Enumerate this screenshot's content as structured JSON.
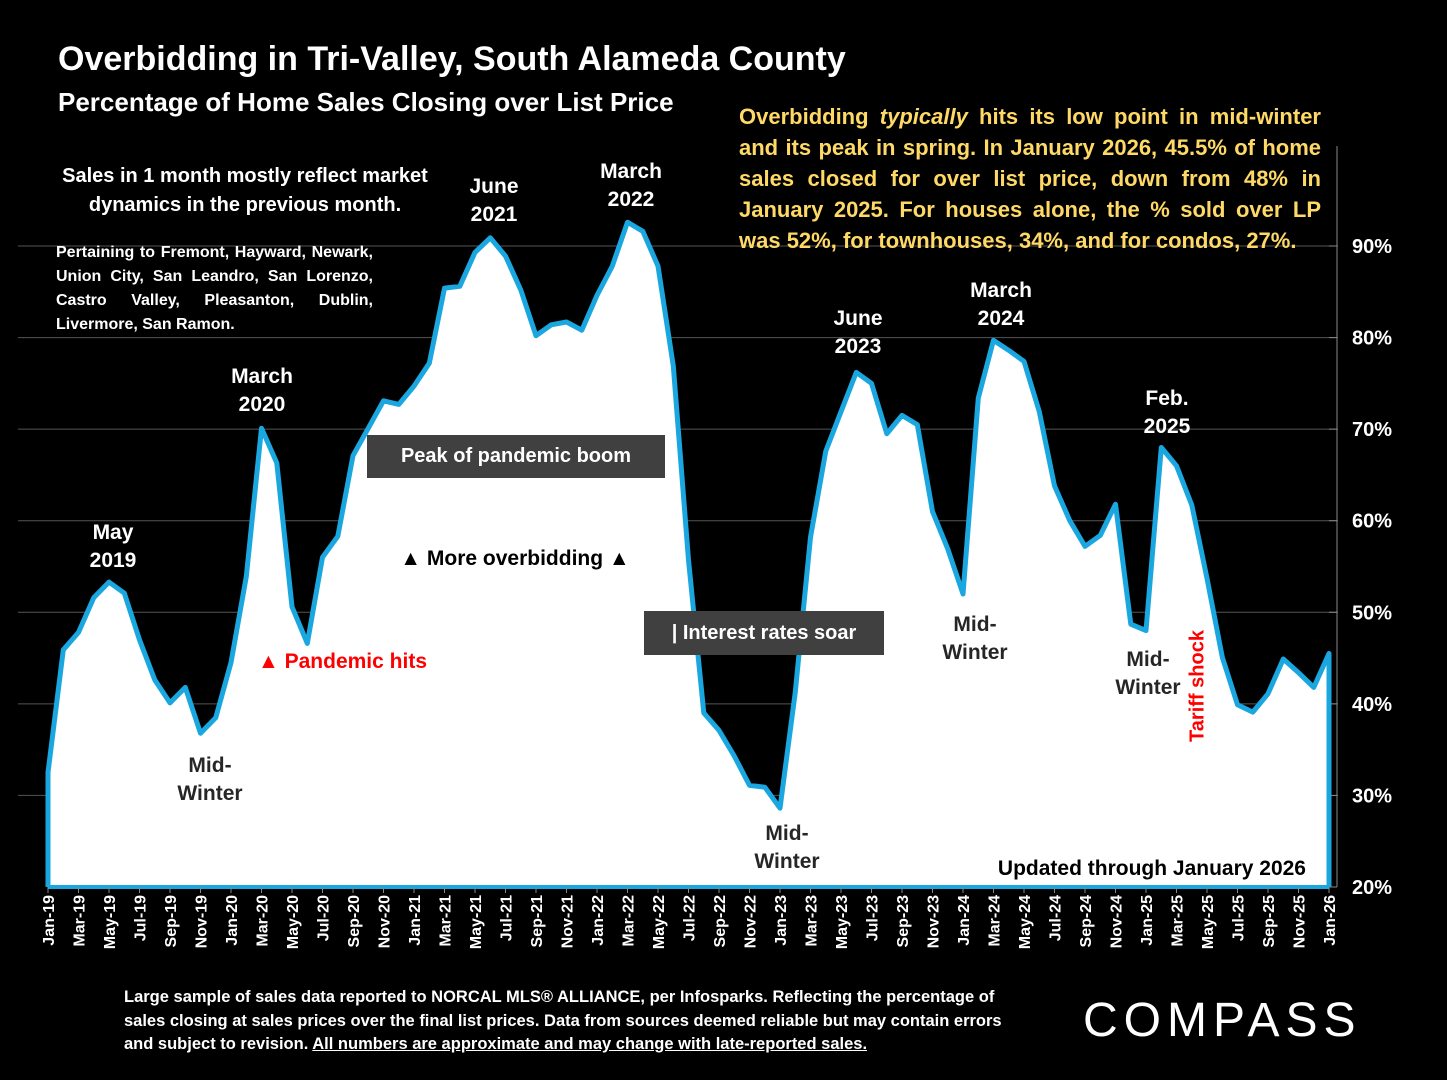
{
  "title": "Overbidding in Tri-Valley, South Alameda County",
  "subtitle": "Percentage of Home Sales Closing over List Price",
  "note_lag": "Sales in 1 month mostly reflect market dynamics in the previous month.",
  "note_cities": "Pertaining to Fremont, Hayward, Newark, Union City, San Leandro, San Lorenzo, Castro Valley, Pleasanton, Dublin, Livermore, San Ramon.",
  "summary": {
    "before": "Overbidding ",
    "emph": "typically",
    "after": " hits its low point in mid-winter and its peak in spring. In January 2026, 45.5% of home sales closed for over list price, down from 48% in January 2025. For houses alone, the % sold over LP was 52%, for townhouses, 34%, and for condos, 27%."
  },
  "footer": {
    "text": "Large sample of sales data reported to NORCAL MLS® ALLIANCE, per Infosparks. Reflecting the percentage of sales closing at sales prices over the final list prices. Data from sources deemed reliable but may contain errors and subject to revision. ",
    "underlined": "All numbers are approximate and may change with late-reported sales."
  },
  "logo": "COMPASS",
  "colors": {
    "line": "#1AA7E0",
    "fill": "#FFFFFF",
    "summary": "#FFD966",
    "red": "#FF0000",
    "box": "#404040"
  },
  "chart_data": {
    "type": "area",
    "title": "Percentage of Home Sales Closing over List Price",
    "xlabel": "",
    "ylabel": "",
    "x_start": "Jan-19",
    "x_end": "Jan-26",
    "interval": "monthly",
    "ylim": [
      20,
      90
    ],
    "y_ticks": [
      "20%",
      "30%",
      "40%",
      "50%",
      "60%",
      "70%",
      "80%",
      "90%"
    ],
    "y_tick_values": [
      20,
      30,
      40,
      50,
      60,
      70,
      80,
      90
    ],
    "grid": true,
    "x_tick_labels": [
      "Jan-19",
      "Mar-19",
      "May-19",
      "Jul-19",
      "Sep-19",
      "Nov-19",
      "Jan-20",
      "Mar-20",
      "May-20",
      "Jul-20",
      "Sep-20",
      "Nov-20",
      "Jan-21",
      "Mar-21",
      "May-21",
      "Jul-21",
      "Sep-21",
      "Nov-21",
      "Jan-22",
      "Mar-22",
      "May-22",
      "Jul-22",
      "Sep-22",
      "Nov-22",
      "Jan-23",
      "Mar-23",
      "May-23",
      "Jul-23",
      "Sep-23",
      "Nov-23",
      "Jan-24",
      "Mar-24",
      "May-24",
      "Jul-24",
      "Sep-24",
      "Nov-24",
      "Jan-25",
      "Mar-25",
      "May-25",
      "Jul-25",
      "Sep-25",
      "Nov-25",
      "Jan-26"
    ],
    "values": [
      32.5,
      45.9,
      47.8,
      51.6,
      53.3,
      52.1,
      47.0,
      42.6,
      40.1,
      41.8,
      36.8,
      38.5,
      44.5,
      53.9,
      70.1,
      66.3,
      50.6,
      46.6,
      56.0,
      58.3,
      67.1,
      70.1,
      73.1,
      72.7,
      74.7,
      77.2,
      85.4,
      85.6,
      89.3,
      90.9,
      88.9,
      85.2,
      80.2,
      81.4,
      81.7,
      80.8,
      84.6,
      87.8,
      92.6,
      91.6,
      87.8,
      76.9,
      55.7,
      39.0,
      37.1,
      34.3,
      31.1,
      30.9,
      28.6,
      41.3,
      58.2,
      67.6,
      71.9,
      76.2,
      75.0,
      69.5,
      71.5,
      70.5,
      61.0,
      56.9,
      52.0,
      73.4,
      79.7,
      78.6,
      77.4,
      71.9,
      63.8,
      60.0,
      57.2,
      58.4,
      61.8,
      48.7,
      48.0,
      68.0,
      66.0,
      61.7,
      53.7,
      45.1,
      39.9,
      39.1,
      41.1,
      44.9,
      43.4,
      41.8,
      45.5
    ],
    "annotations": {
      "may2019": "May\n2019",
      "mar2020": "March\n2020",
      "jun2021": "June\n2021",
      "mar2022": "March\n2022",
      "jun2023": "June\n2023",
      "mar2024": "March\n2024",
      "feb2025": "Feb.\n2025",
      "midwinter": "Mid-\nWinter",
      "pandemic": "▲ Pandemic hits",
      "more_overbidding": "▲ More overbidding ▲",
      "peak_box": "Peak of pandemic boom",
      "rates_box": "| Interest rates soar",
      "tariff": "Tariff shock",
      "updated": "Updated through January 2026"
    }
  }
}
